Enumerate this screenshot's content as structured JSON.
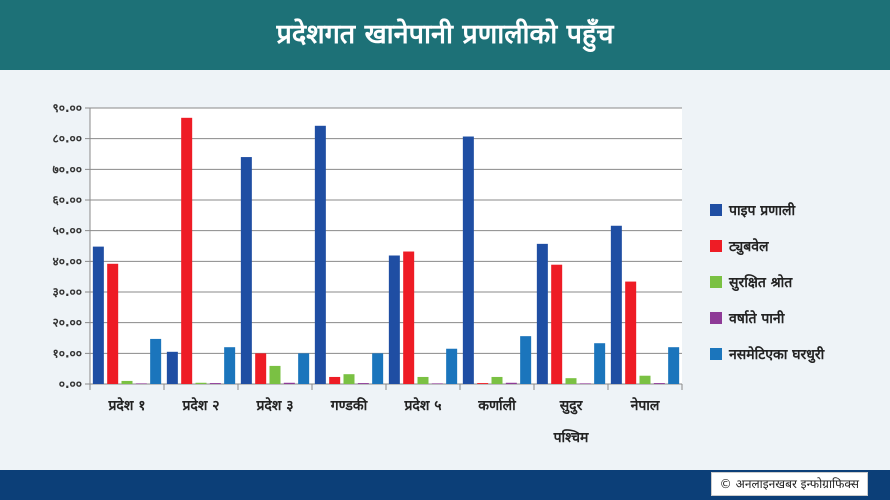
{
  "header": {
    "title": "प्रदेशगत खानेपानी प्रणालीको पहुँच"
  },
  "footer": {
    "copyright_symbol": "©",
    "credit": "अनलाइनखबर इन्फोग्राफिक्स"
  },
  "colors": {
    "header_bg": "#1d7177",
    "footer_bg": "#0c3f78"
  },
  "chart_data": {
    "type": "bar",
    "title": "प्रदेशगत खानेपानी प्रणालीको पहुँच",
    "categories": [
      [
        "प्रदेश १"
      ],
      [
        "प्रदेश २"
      ],
      [
        "प्रदेश ३"
      ],
      [
        "गण्डकी"
      ],
      [
        "प्रदेश ५"
      ],
      [
        "कर्णाली"
      ],
      [
        "सुदुर",
        "पश्चिम"
      ],
      [
        "नेपाल"
      ]
    ],
    "ylim": [
      0,
      90
    ],
    "y_ticks": [
      0,
      10,
      20,
      30,
      40,
      50,
      60,
      70,
      80,
      90
    ],
    "y_tick_labels": [
      "०.००",
      "१०.००",
      "२०.००",
      "३०.००",
      "४०.००",
      "५०.००",
      "६०.००",
      "७०.००",
      "८०.००",
      "९०.००"
    ],
    "grid": true,
    "legend_position": "right",
    "series": [
      {
        "name": "पाइप प्रणाली",
        "color": "#1f4ea3",
        "values": [
          44.8,
          10.5,
          74.0,
          84.2,
          41.9,
          80.7,
          45.7,
          51.6
        ]
      },
      {
        "name": "ट्युबवेल",
        "color": "#ee1c25",
        "values": [
          39.2,
          86.8,
          10.0,
          2.3,
          43.2,
          0.3,
          38.9,
          33.4
        ]
      },
      {
        "name": "सुरक्षित श्रोत",
        "color": "#7ac143",
        "values": [
          1.0,
          0.4,
          5.9,
          3.2,
          2.3,
          2.3,
          1.9,
          2.7
        ]
      },
      {
        "name": "वर्षाते पानी",
        "color": "#8e3a97",
        "values": [
          0.2,
          0.3,
          0.4,
          0.3,
          0.2,
          0.4,
          0.2,
          0.3
        ]
      },
      {
        "name": "नसमेटिएका घरधुरी",
        "color": "#1b75bc",
        "values": [
          14.7,
          12.0,
          10.0,
          10.0,
          11.5,
          15.6,
          13.3,
          12.0
        ]
      }
    ]
  }
}
